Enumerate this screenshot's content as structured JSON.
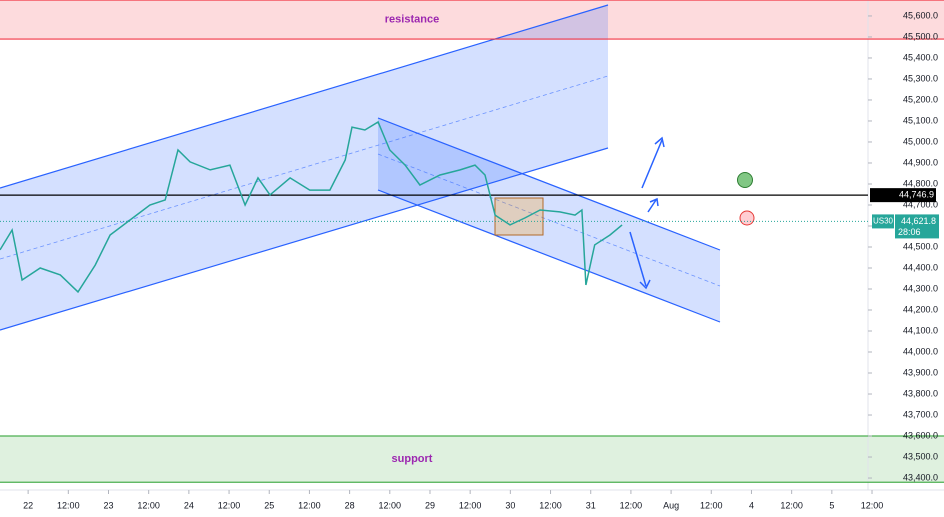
{
  "chart_data": {
    "type": "line",
    "title": "US30",
    "x": [
      -0.7,
      -0.4,
      -0.15,
      0.3,
      0.8,
      1.24,
      1.67,
      2.04,
      2.54,
      3.03,
      3.41,
      3.73,
      4.03,
      4.53,
      5.02,
      5.4,
      5.72,
      6.02,
      6.52,
      7.01,
      7.51,
      7.89,
      8.06,
      8.38,
      8.71,
      9.0,
      9.38,
      9.75,
      10.25,
      10.75,
      11.12,
      11.37,
      11.62,
      11.99,
      12.36,
      12.74,
      13.23,
      13.61,
      13.78,
      13.88,
      14.1,
      14.48,
      14.78
    ],
    "series": [
      {
        "name": "US30",
        "color": "#26a69a",
        "values": [
          44486,
          44581,
          44343,
          44400,
          44367,
          44286,
          44414,
          44557,
          44629,
          44700,
          44724,
          44962,
          44905,
          44867,
          44890,
          44700,
          44829,
          44748,
          44829,
          44771,
          44771,
          44914,
          45071,
          45057,
          45095,
          44962,
          44890,
          44795,
          44843,
          44867,
          44890,
          44843,
          44652,
          44605,
          44638,
          44676,
          44667,
          44652,
          44676,
          44319,
          44510,
          44557,
          44605
        ]
      }
    ],
    "xlim": [
      -0.7,
      20.9
    ],
    "xticks": [
      {
        "value": 0,
        "label": "22"
      },
      {
        "value": 1,
        "label": "12:00"
      },
      {
        "value": 2,
        "label": "23"
      },
      {
        "value": 3,
        "label": "12:00"
      },
      {
        "value": 4,
        "label": "24"
      },
      {
        "value": 5,
        "label": "12:00"
      },
      {
        "value": 6,
        "label": "25"
      },
      {
        "value": 7,
        "label": "12:00"
      },
      {
        "value": 8,
        "label": "28"
      },
      {
        "value": 9,
        "label": "12:00"
      },
      {
        "value": 10,
        "label": "29"
      },
      {
        "value": 11,
        "label": "12:00"
      },
      {
        "value": 12,
        "label": "30"
      },
      {
        "value": 13,
        "label": "12:00"
      },
      {
        "value": 14,
        "label": "31"
      },
      {
        "value": 15,
        "label": "12:00"
      },
      {
        "value": 16,
        "label": "Aug"
      },
      {
        "value": 17,
        "label": "12:00"
      },
      {
        "value": 18,
        "label": "4"
      },
      {
        "value": 19,
        "label": "12:00"
      },
      {
        "value": 20,
        "label": "5"
      },
      {
        "value": 21,
        "label": "12:00"
      }
    ],
    "ylim": [
      43343,
      45676
    ],
    "yticks": [
      {
        "value": 43400,
        "label": "43,400.0"
      },
      {
        "value": 43500,
        "label": "43,500.0"
      },
      {
        "value": 43600,
        "label": "43,600.0"
      },
      {
        "value": 43700,
        "label": "43,700.0"
      },
      {
        "value": 43800,
        "label": "43,800.0"
      },
      {
        "value": 43900,
        "label": "43,900.0"
      },
      {
        "value": 44000,
        "label": "44,000.0"
      },
      {
        "value": 44100,
        "label": "44,100.0"
      },
      {
        "value": 44200,
        "label": "44,200.0"
      },
      {
        "value": 44300,
        "label": "44,300.0"
      },
      {
        "value": 44400,
        "label": "44,400.0"
      },
      {
        "value": 44500,
        "label": "44,500.0"
      },
      {
        "value": 44600,
        "label": "44,600.0"
      },
      {
        "value": 44700,
        "label": "44,700.0"
      },
      {
        "value": 44800,
        "label": "44,800.0"
      },
      {
        "value": 44900,
        "label": "44,900.0"
      },
      {
        "value": 45000,
        "label": "45,000.0"
      },
      {
        "value": 45100,
        "label": "45,100.0"
      },
      {
        "value": 45200,
        "label": "45,200.0"
      },
      {
        "value": 45300,
        "label": "45,300.0"
      },
      {
        "value": 45400,
        "label": "45,400.0"
      },
      {
        "value": 45500,
        "label": "45,500.0"
      },
      {
        "value": 45600,
        "label": "45,600.0"
      }
    ],
    "zones": [
      {
        "label": "resistance",
        "from": 45490,
        "to": 45676,
        "color": "#f23645"
      },
      {
        "label": "support",
        "from": 43380,
        "to": 43600,
        "color": "#4caf50"
      }
    ],
    "level": {
      "value": 44746.9,
      "label": "44,746.9"
    },
    "last": {
      "value": 44621.8,
      "label": "44,621.8",
      "countdown": "28:06"
    }
  }
}
